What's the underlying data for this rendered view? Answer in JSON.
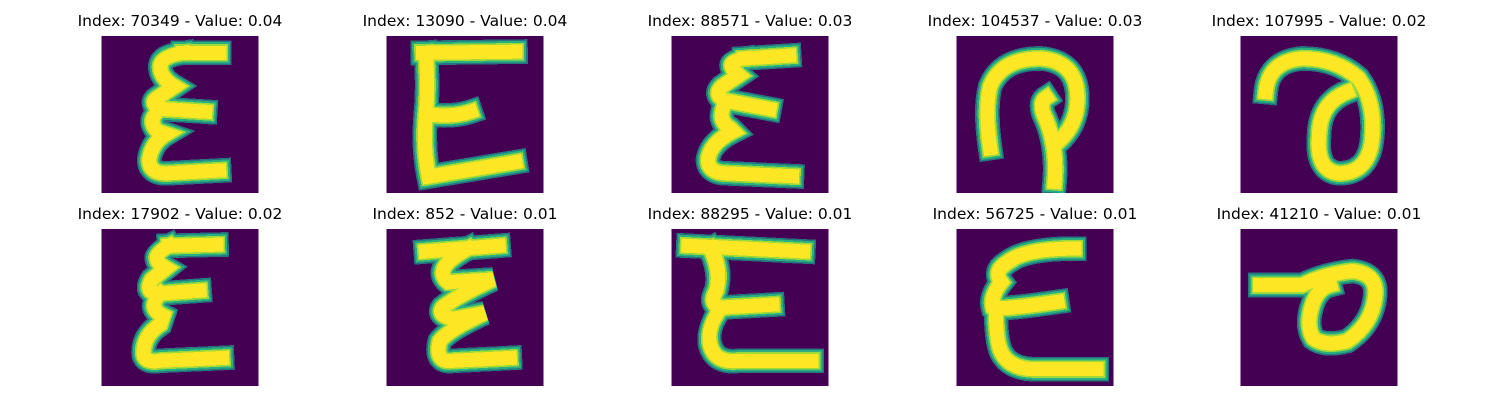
{
  "colors": {
    "background": "#440154",
    "stroke_core": "#fde725",
    "stroke_mid": "#9fda3a",
    "stroke_edge": "#2ab07f",
    "stroke_faint": "#21918c"
  },
  "panels": [
    {
      "title": "Index: 70349 - Value: 0.04",
      "glyph": "e-zigzag"
    },
    {
      "title": "Index: 13090 - Value: 0.04",
      "glyph": "e-block"
    },
    {
      "title": "Index: 88571 - Value: 0.03",
      "glyph": "e-zigzag-thin"
    },
    {
      "title": "Index: 104537 - Value: 0.03",
      "glyph": "loop-hook"
    },
    {
      "title": "Index: 107995 - Value: 0.02",
      "glyph": "loop-oval"
    },
    {
      "title": "Index: 17902 - Value: 0.02",
      "glyph": "e-zigzag-bold"
    },
    {
      "title": "Index: 852 - Value: 0.01",
      "glyph": "z-zigzag"
    },
    {
      "title": "Index: 88295 - Value: 0.01",
      "glyph": "e-wide"
    },
    {
      "title": "Index: 56725 - Value: 0.01",
      "glyph": "e-round"
    },
    {
      "title": "Index: 41210 - Value: 0.01",
      "glyph": "loop-small"
    }
  ]
}
